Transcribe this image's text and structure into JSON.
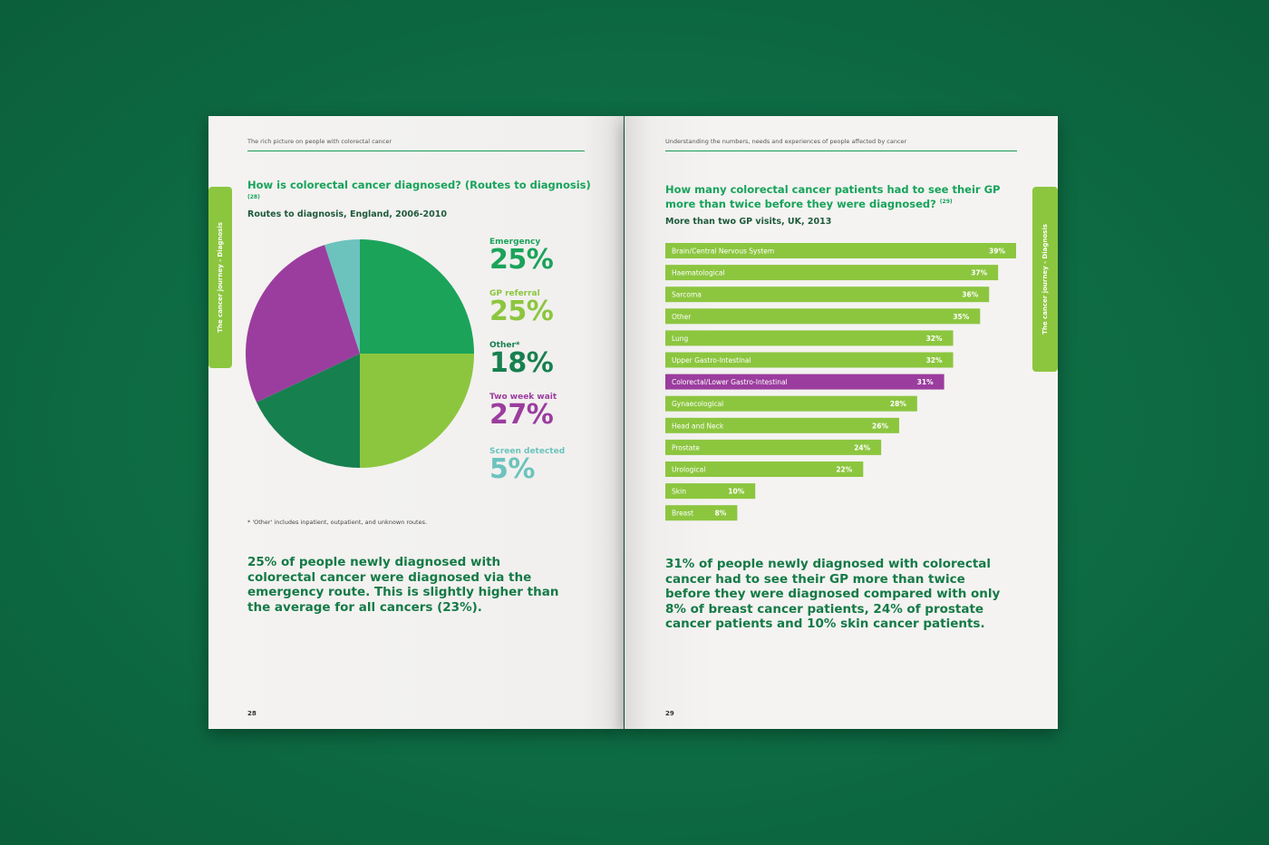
{
  "colors": {
    "background": "#0d6a42",
    "emergency": "#1ba35a",
    "gp_referral": "#8cc63f",
    "other": "#17804f",
    "two_week_wait": "#9b3d9e",
    "screen_detected": "#6cc3bd",
    "bar": "#8cc63f",
    "bar_highlight": "#9b3d9e"
  },
  "left": {
    "running_head": "The rich picture on people with colorectal cancer",
    "tab": "The cancer journey - Diagnosis",
    "title": "How is colorectal cancer diagnosed? (Routes to diagnosis)",
    "title_ref": "(28)",
    "subtitle": "Routes to diagnosis, England, 2006-2010",
    "footnote": "* 'Other' includes inpatient, outpatient, and unknown routes.",
    "summary": "25% of people newly diagnosed with colorectal cancer were diagnosed via the emergency route. This is slightly higher than the average for all cancers (23%).",
    "page_number": "28"
  },
  "right": {
    "running_head": "Understanding the numbers, needs and experiences of people affected by cancer",
    "tab": "The cancer journey - Diagnosis",
    "title": "How many colorectal cancer patients had to see their GP more than twice before they were diagnosed?",
    "title_ref": "(29)",
    "subtitle": "More than two GP visits, UK, 2013",
    "summary": "31% of people newly diagnosed with colorectal cancer had to see their GP more than twice before they were diagnosed compared with only 8% of breast cancer patients, 24% of prostate cancer patients and 10% skin cancer patients.",
    "page_number": "29"
  },
  "chart_data": [
    {
      "type": "pie",
      "title": "Routes to diagnosis, England, 2006-2010",
      "slices": [
        {
          "label": "Emergency",
          "value": 25,
          "display": "25%",
          "color": "#1ba35a"
        },
        {
          "label": "GP referral",
          "value": 25,
          "display": "25%",
          "color": "#8cc63f"
        },
        {
          "label": "Other*",
          "value": 18,
          "display": "18%",
          "color": "#17804f"
        },
        {
          "label": "Two week wait",
          "value": 27,
          "display": "27%",
          "color": "#9b3d9e"
        },
        {
          "label": "Screen detected",
          "value": 5,
          "display": "5%",
          "color": "#6cc3bd"
        }
      ]
    },
    {
      "type": "bar",
      "orientation": "horizontal",
      "title": "More than two GP visits, UK, 2013",
      "xlim": [
        0,
        40
      ],
      "highlight": "Colorectal/Lower Gastro-Intestinal",
      "categories": [
        "Brain/Central Nervous System",
        "Haematological",
        "Sarcoma",
        "Other",
        "Lung",
        "Upper Gastro-Intestinal",
        "Colorectal/Lower Gastro-Intestinal",
        "Gynaecological",
        "Head and Neck",
        "Prostate",
        "Urological",
        "Skin",
        "Breast"
      ],
      "values": [
        39,
        37,
        36,
        35,
        32,
        32,
        31,
        28,
        26,
        24,
        22,
        10,
        8
      ],
      "labels": [
        "39%",
        "37%",
        "36%",
        "35%",
        "32%",
        "32%",
        "31%",
        "28%",
        "26%",
        "24%",
        "22%",
        "10%",
        "8%"
      ]
    }
  ]
}
